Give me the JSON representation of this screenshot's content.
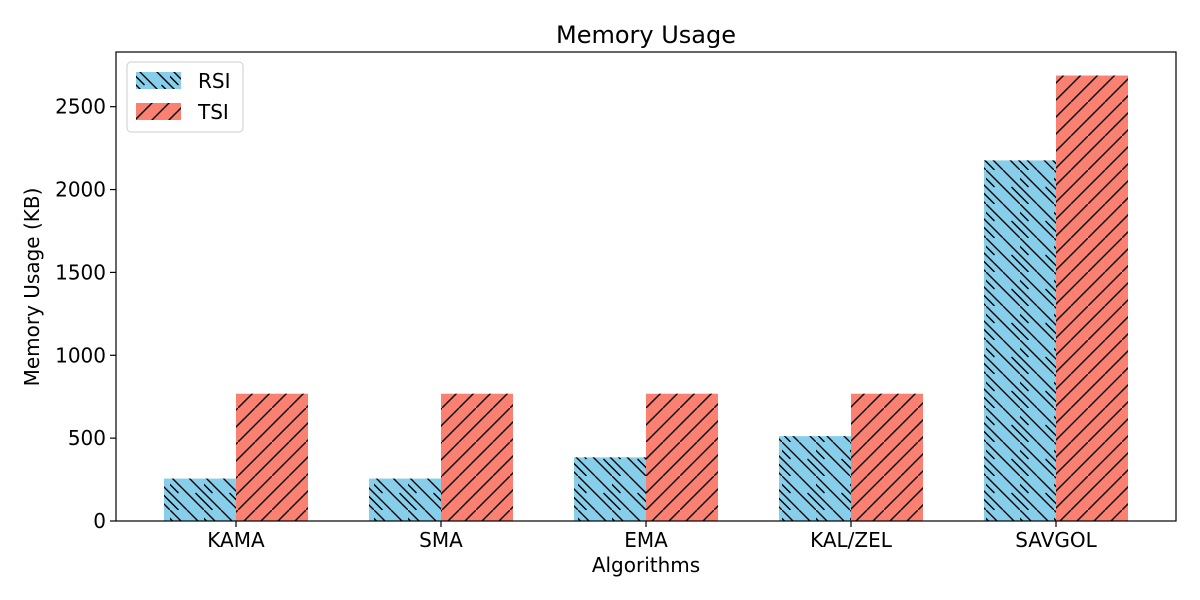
{
  "chart_data": {
    "type": "bar",
    "title": "Memory Usage",
    "xlabel": "Algorithms",
    "ylabel": "Memory Usage (KB)",
    "categories": [
      "KAMA",
      "SMA",
      "EMA",
      "KAL/ZEL",
      "SAVGOL"
    ],
    "series": [
      {
        "name": "RSI",
        "values": [
          256,
          256,
          384,
          512,
          2176
        ],
        "color": "#87ceeb",
        "hatch": "backslash"
      },
      {
        "name": "TSI",
        "values": [
          768,
          768,
          768,
          768,
          2688
        ],
        "color": "#fa8072",
        "hatch": "slash"
      }
    ],
    "ylim": [
      0,
      2830
    ],
    "yticks": [
      0,
      500,
      1000,
      1500,
      2000,
      2500
    ],
    "grid": false,
    "legend_position": "top-left"
  }
}
